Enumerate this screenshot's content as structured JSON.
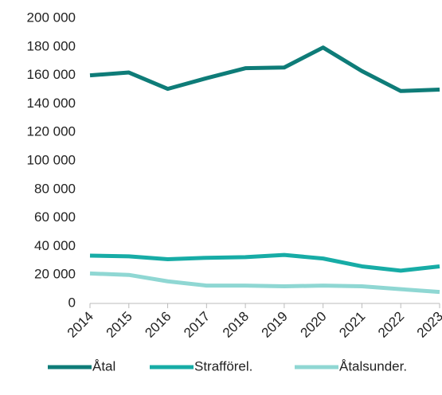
{
  "chart_data": {
    "type": "line",
    "categories": [
      "2014",
      "2015",
      "2016",
      "2017",
      "2018",
      "2019",
      "2020",
      "2021",
      "2022",
      "2023"
    ],
    "series": [
      {
        "name": "Åtal",
        "color": "#0e7c78",
        "values": [
          160000,
          162000,
          150500,
          158000,
          165000,
          165500,
          179500,
          163000,
          149000,
          150000
        ]
      },
      {
        "name": "Strafförel.",
        "color": "#17aca6",
        "values": [
          33500,
          33000,
          31000,
          32000,
          32500,
          34000,
          31500,
          26000,
          23000,
          26000
        ]
      },
      {
        "name": "Åtalsunder.",
        "color": "#8fd7d3",
        "values": [
          21000,
          20000,
          15500,
          12500,
          12500,
          12000,
          12500,
          12000,
          10000,
          8000
        ]
      }
    ],
    "ylim": [
      0,
      200000
    ],
    "yticks": [
      0,
      {
        "value": 20000,
        "label": "20 000"
      },
      {
        "value": 40000,
        "label": "40 000"
      },
      {
        "value": 60000,
        "label": "60 000"
      },
      {
        "value": 80000,
        "label": "80 000"
      },
      {
        "value": 100000,
        "label": "100 000"
      },
      {
        "value": 120000,
        "label": "120 000"
      },
      {
        "value": 140000,
        "label": "140 000"
      },
      {
        "value": 160000,
        "label": "160 000"
      },
      {
        "value": 180000,
        "label": "180 000"
      },
      {
        "value": 200000,
        "label": "200 000"
      }
    ],
    "grid": false,
    "legend": "bottom"
  }
}
